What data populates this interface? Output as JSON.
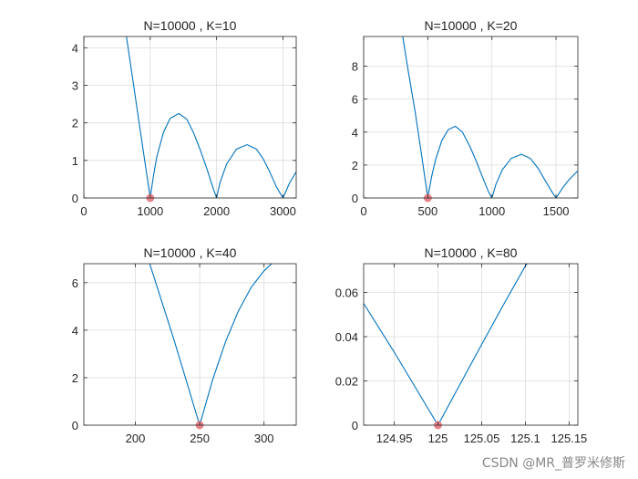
{
  "colors": {
    "line": "#0072BD",
    "marker": "#e8848a",
    "grid": "#dcdcdc",
    "axis": "#262626"
  },
  "watermark": "CSDN @MR_普罗米修斯",
  "chart_data": [
    {
      "type": "line",
      "title": "N=10000 , K=10",
      "xlim": [
        0,
        3200
      ],
      "ylim": [
        0,
        4.3
      ],
      "xticks": [
        0,
        1000,
        2000,
        3000
      ],
      "xtick_labels": [
        "0",
        "1000",
        "2000",
        "3000"
      ],
      "yticks": [
        0,
        1,
        2,
        3,
        4
      ],
      "ytick_labels": [
        "0",
        "1",
        "2",
        "3",
        "4"
      ],
      "grid": true,
      "series": [
        {
          "x": [
            600,
            700,
            800,
            900,
            1000,
            1050,
            1100,
            1200,
            1300,
            1430,
            1550,
            1650,
            1750,
            1850,
            1950,
            2000,
            2050,
            2150,
            2300,
            2460,
            2600,
            2700,
            2800,
            2900,
            3000,
            3050,
            3100,
            3150,
            3200
          ],
          "y": [
            4.8,
            3.6,
            2.4,
            1.2,
            0,
            0.6,
            1.1,
            1.75,
            2.12,
            2.25,
            2.1,
            1.75,
            1.3,
            0.8,
            0.25,
            0,
            0.4,
            0.9,
            1.3,
            1.42,
            1.3,
            1.05,
            0.7,
            0.3,
            0,
            0.2,
            0.4,
            0.55,
            0.7
          ]
        }
      ],
      "marker": {
        "x": 1000,
        "y": 0
      }
    },
    {
      "type": "line",
      "title": "N=10000 , K=20",
      "xlim": [
        0,
        1670
      ],
      "ylim": [
        0,
        9.8
      ],
      "xticks": [
        0,
        500,
        1000,
        1500
      ],
      "xtick_labels": [
        "0",
        "500",
        "1000",
        "1500"
      ],
      "yticks": [
        0,
        2,
        4,
        6,
        8
      ],
      "ytick_labels": [
        "0",
        "2",
        "4",
        "6",
        "8"
      ],
      "grid": true,
      "series": [
        {
          "x": [
            290,
            350,
            400,
            450,
            500,
            530,
            560,
            610,
            660,
            715,
            770,
            830,
            880,
            930,
            975,
            1000,
            1030,
            1080,
            1150,
            1230,
            1300,
            1360,
            1420,
            1470,
            1500,
            1550,
            1600,
            1670
          ],
          "y": [
            10.5,
            7.6,
            5.3,
            2.7,
            0,
            1.3,
            2.3,
            3.5,
            4.15,
            4.35,
            4.0,
            3.1,
            2.2,
            1.2,
            0.35,
            0,
            0.8,
            1.7,
            2.4,
            2.65,
            2.4,
            1.8,
            1.0,
            0.35,
            0,
            0.6,
            1.1,
            1.65
          ]
        }
      ],
      "marker": {
        "x": 500,
        "y": 0
      }
    },
    {
      "type": "line",
      "title": "N=10000 , K=40",
      "xlim": [
        160,
        325
      ],
      "ylim": [
        0,
        6.8
      ],
      "xticks": [
        200,
        250,
        300
      ],
      "xtick_labels": [
        "200",
        "250",
        "300"
      ],
      "yticks": [
        0,
        2,
        4,
        6
      ],
      "ytick_labels": [
        "0",
        "2",
        "4",
        "6"
      ],
      "grid": true,
      "series": [
        {
          "x": [
            210,
            220,
            230,
            240,
            250,
            260,
            270,
            280,
            290,
            300,
            308
          ],
          "y": [
            7.0,
            5.3,
            3.6,
            1.8,
            0,
            1.9,
            3.5,
            4.8,
            5.8,
            6.5,
            6.9
          ]
        }
      ],
      "marker": {
        "x": 250,
        "y": 0
      }
    },
    {
      "type": "line",
      "title": "N=10000 , K=80",
      "xlim": [
        124.915,
        125.16
      ],
      "ylim": [
        0,
        0.073
      ],
      "xticks": [
        124.95,
        125,
        125.05,
        125.1,
        125.15
      ],
      "xtick_labels": [
        "124.95",
        "125",
        "125.05",
        "125.1",
        "125.15"
      ],
      "yticks": [
        0,
        0.02,
        0.04,
        0.06
      ],
      "ytick_labels": [
        "0",
        "0.02",
        "0.04",
        "0.06"
      ],
      "grid": true,
      "series": [
        {
          "x": [
            124.915,
            124.95,
            124.975,
            125,
            125.025,
            125.05,
            125.075,
            125.1,
            125.115
          ],
          "y": [
            0.055,
            0.033,
            0.0165,
            0,
            0.0183,
            0.0365,
            0.0545,
            0.072,
            0.0795
          ]
        }
      ],
      "marker": {
        "x": 125,
        "y": 0
      }
    }
  ]
}
